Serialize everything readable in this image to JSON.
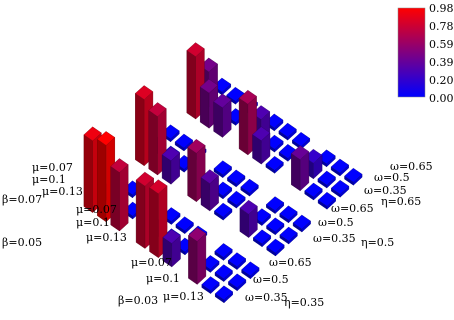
{
  "chart_data": {
    "type": "bar3d",
    "colorscale": [
      "#0000ff",
      "#ff0000"
    ],
    "colorbar": {
      "ticks": [
        "0.98",
        "0.78",
        "0.59",
        "0.39",
        "0.20",
        "0.00"
      ],
      "min": 0.0,
      "max": 0.98
    },
    "axis_labels": {
      "left_groups": [
        {
          "beta": "β=0.07",
          "mu": [
            "μ=0.07",
            "μ=0.1",
            "μ=0.13"
          ]
        },
        {
          "beta": "β=0.05",
          "mu": [
            "μ=0.07",
            "μ=0.1",
            "μ=0.13"
          ]
        },
        {
          "beta": "β=0.03",
          "mu": [
            "μ=0.07",
            "μ=0.1",
            "μ=0.13"
          ]
        }
      ],
      "right_groups": [
        {
          "eta": "η=0.65",
          "omega": [
            "ω=0.65",
            "ω=0.5",
            "ω=0.35"
          ]
        },
        {
          "eta": "η=0.5",
          "omega": [
            "ω=0.65",
            "ω=0.5",
            "ω=0.35"
          ]
        },
        {
          "eta": "η=0.35",
          "omega": [
            "ω=0.65",
            "ω=0.5",
            "ω=0.35"
          ]
        }
      ]
    },
    "rows_order": "row index = beta group (0: β=0.07 back, 2: β=0.03 front) × mu (0.07, 0.1, 0.13); col index = eta group (0: η=0.65 back, 2: η=0.35 front) × omega (0.65, 0.5, 0.35)",
    "values": [
      [
        0.0,
        0.0,
        0.0,
        0.0,
        0.0,
        0.0,
        0.0,
        0.0,
        0.0
      ],
      [
        0.45,
        0.0,
        0.0,
        0.3,
        0.0,
        0.0,
        0.2,
        0.0,
        0.0
      ],
      [
        0.8,
        0.45,
        0.38,
        0.65,
        0.3,
        0.0,
        0.4,
        0.0,
        0.0
      ],
      [
        0.0,
        0.0,
        0.0,
        0.0,
        0.0,
        0.0,
        0.0,
        0.0,
        0.0
      ],
      [
        0.0,
        0.0,
        0.0,
        0.0,
        0.0,
        0.0,
        0.0,
        0.0,
        0.0
      ],
      [
        0.85,
        0.75,
        0.3,
        0.62,
        0.35,
        0.0,
        0.3,
        0.0,
        0.0
      ],
      [
        0.0,
        0.0,
        0.0,
        0.0,
        0.0,
        0.0,
        0.0,
        0.0,
        0.0
      ],
      [
        0.0,
        0.0,
        0.0,
        0.0,
        0.0,
        0.0,
        0.0,
        0.0,
        0.0
      ],
      [
        0.92,
        0.98,
        0.75,
        0.8,
        0.82,
        0.3,
        0.55,
        0.0,
        0.0
      ]
    ]
  }
}
